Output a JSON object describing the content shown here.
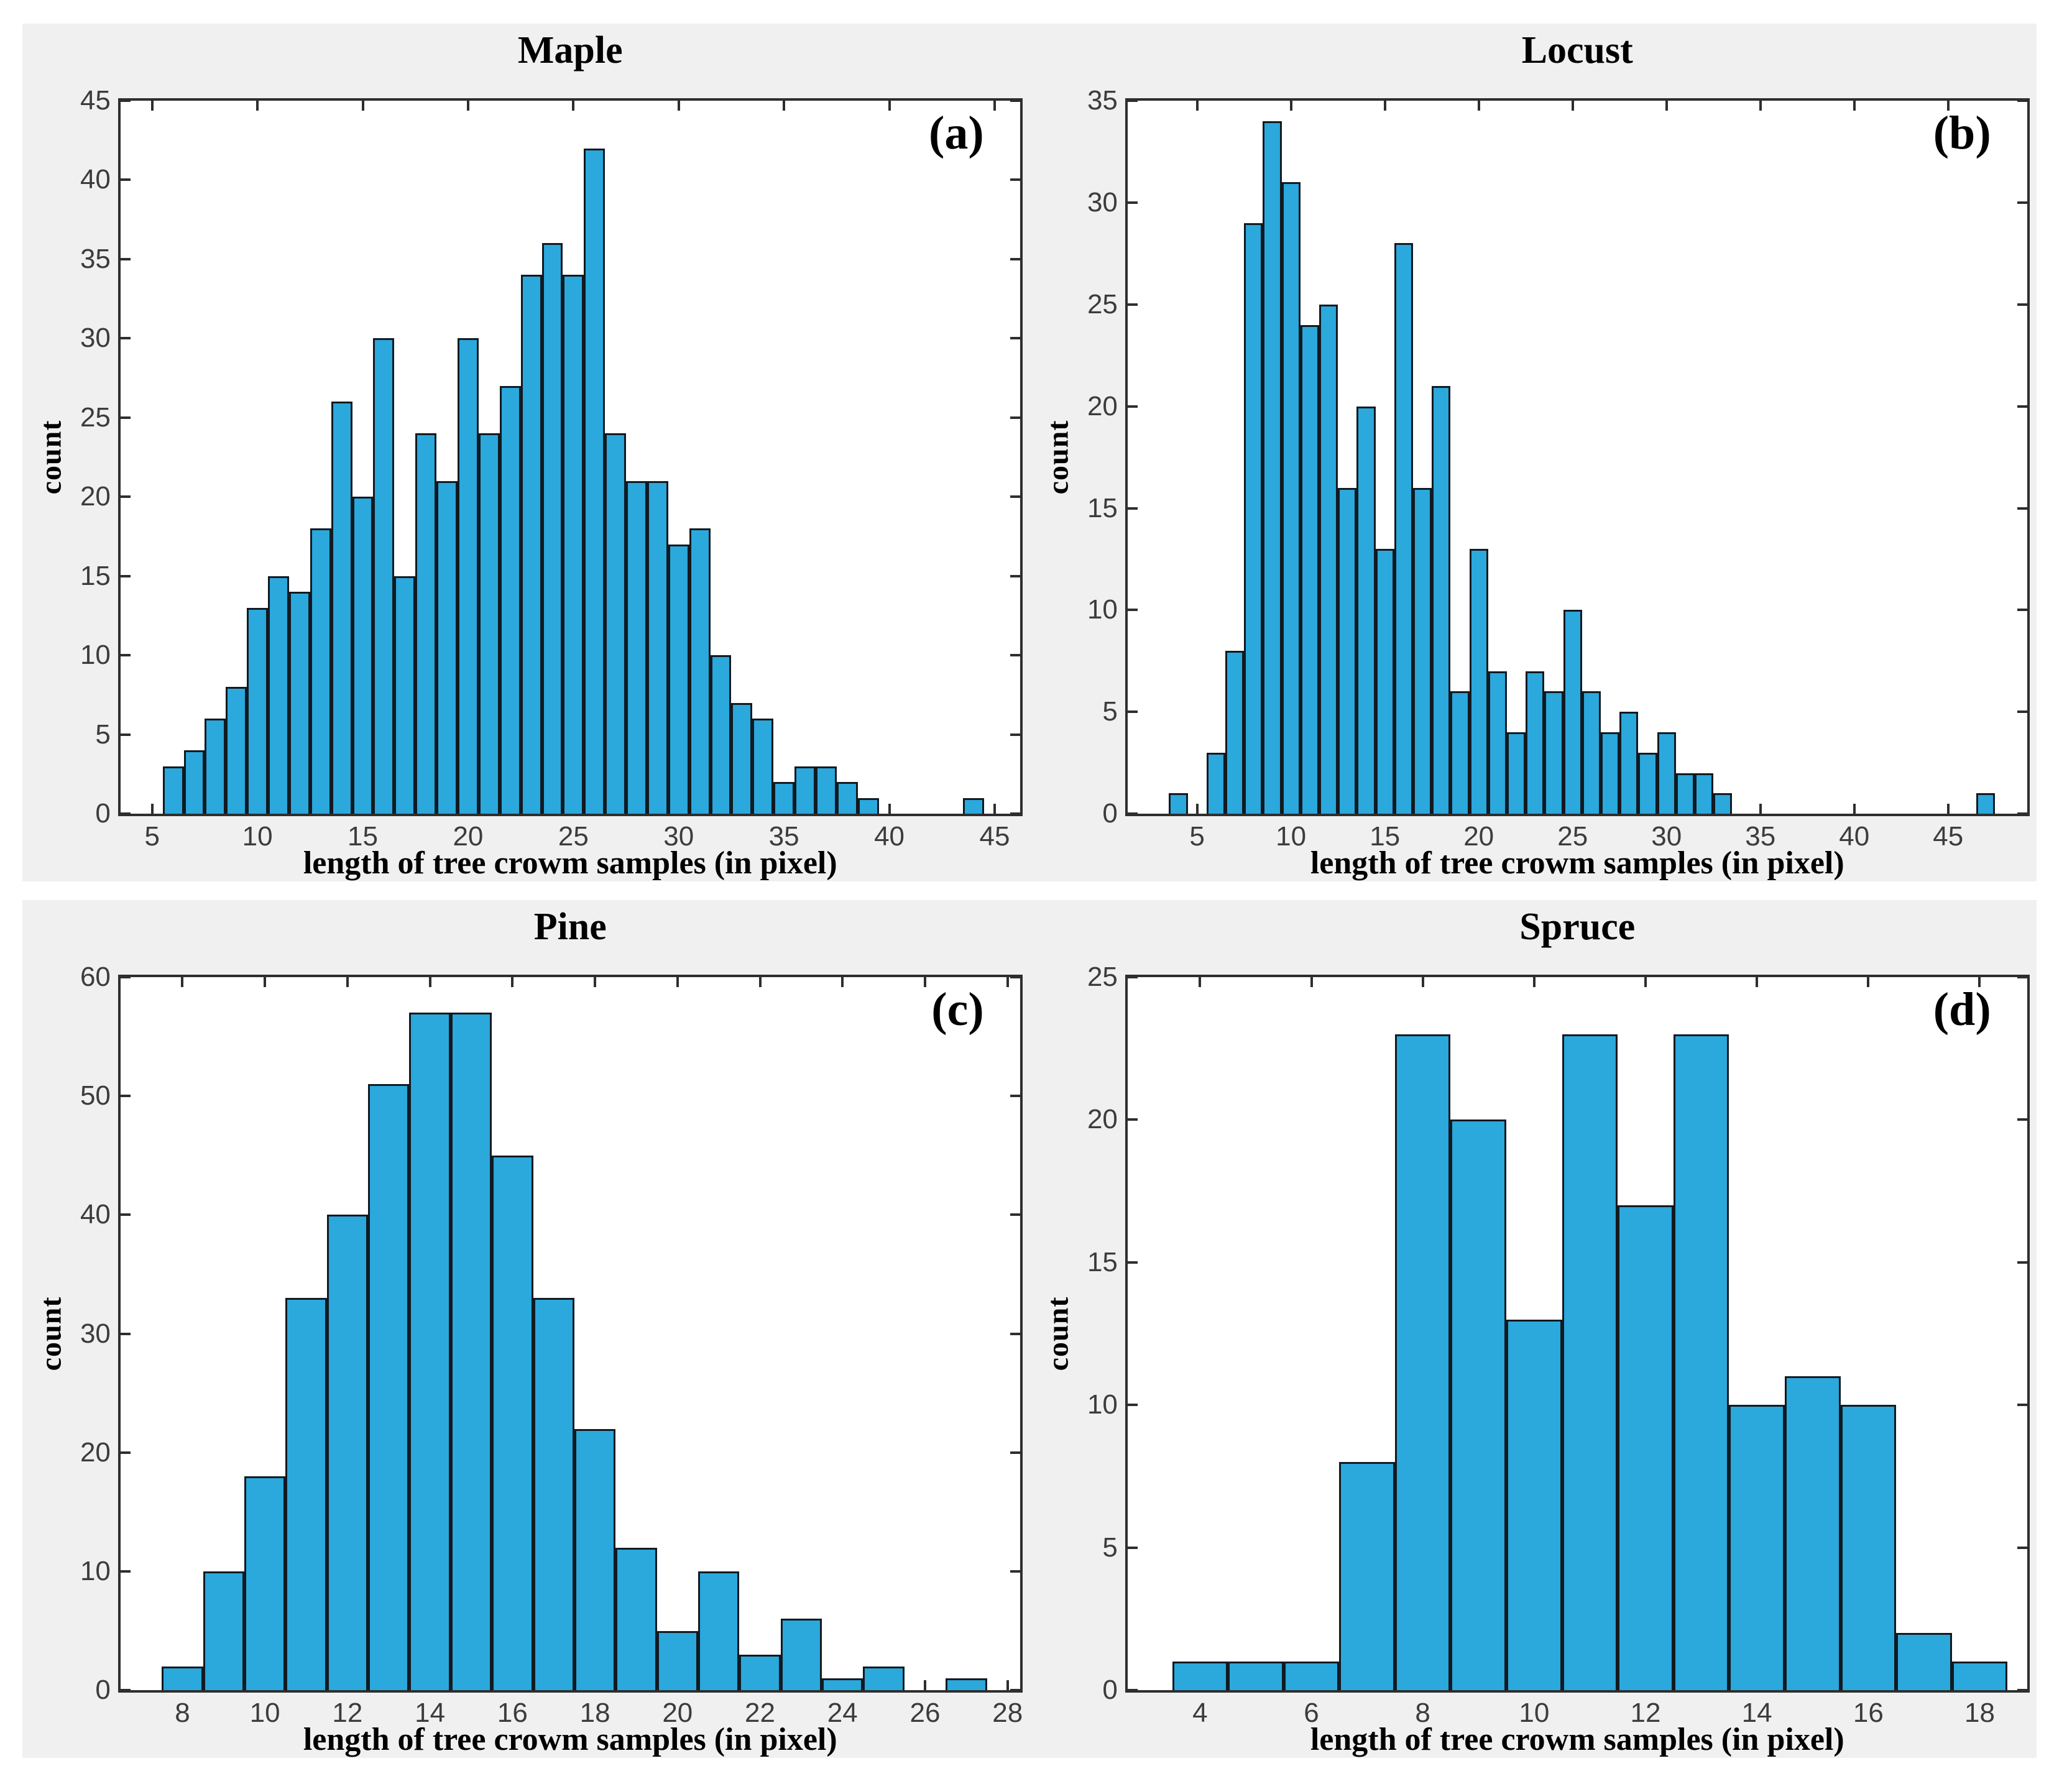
{
  "figure": {
    "colors": {
      "band_bg": "#F0F0F0",
      "plot_bg": "#FFFFFF",
      "bar_face": "#2BA8DC",
      "bar_edge": "#111A21",
      "axis": "#2E2E2E",
      "tick_label": "#3C3C3C",
      "text": "#000000"
    }
  },
  "chart_data": [
    {
      "type": "bar",
      "panel": "a",
      "title": "Maple",
      "corner_label": "(a)",
      "xlabel": "length of tree crowm samples (in pixel)",
      "ylabel": "count",
      "xlim": [
        3.5,
        46.2
      ],
      "ylim": [
        0,
        45
      ],
      "xticks": [
        5,
        10,
        15,
        20,
        25,
        30,
        35,
        40,
        45
      ],
      "yticks": [
        0,
        5,
        10,
        15,
        20,
        25,
        30,
        35,
        40,
        45
      ],
      "bin_width": 1,
      "legend": "none",
      "grid": false,
      "bars": [
        [
          5.5,
          3
        ],
        [
          6.5,
          4
        ],
        [
          7.5,
          6
        ],
        [
          8.5,
          8
        ],
        [
          9.5,
          13
        ],
        [
          10.5,
          15
        ],
        [
          11.5,
          14
        ],
        [
          12.5,
          18
        ],
        [
          13.5,
          26
        ],
        [
          14.5,
          20
        ],
        [
          15.5,
          30
        ],
        [
          16.5,
          15
        ],
        [
          17.5,
          24
        ],
        [
          18.5,
          21
        ],
        [
          19.5,
          30
        ],
        [
          20.5,
          24
        ],
        [
          21.5,
          27
        ],
        [
          22.5,
          34
        ],
        [
          23.5,
          36
        ],
        [
          24.5,
          34
        ],
        [
          25.5,
          42
        ],
        [
          26.5,
          24
        ],
        [
          27.5,
          21
        ],
        [
          28.5,
          21
        ],
        [
          29.5,
          17
        ],
        [
          30.5,
          18
        ],
        [
          31.5,
          10
        ],
        [
          32.5,
          7
        ],
        [
          33.5,
          6
        ],
        [
          34.5,
          2
        ],
        [
          35.5,
          3
        ],
        [
          36.5,
          3
        ],
        [
          37.5,
          2
        ],
        [
          38.5,
          1
        ],
        [
          43.5,
          1
        ]
      ]
    },
    {
      "type": "bar",
      "panel": "b",
      "title": "Locust",
      "corner_label": "(b)",
      "xlabel": "length of tree crowm samples (in pixel)",
      "ylabel": "count",
      "xlim": [
        1.3,
        49.2
      ],
      "ylim": [
        0,
        35
      ],
      "xticks": [
        5,
        10,
        15,
        20,
        25,
        30,
        35,
        40,
        45
      ],
      "yticks": [
        0,
        5,
        10,
        15,
        20,
        25,
        30,
        35
      ],
      "bin_width": 1,
      "legend": "none",
      "grid": false,
      "bars": [
        [
          3.5,
          1
        ],
        [
          5.5,
          3
        ],
        [
          6.5,
          8
        ],
        [
          7.5,
          29
        ],
        [
          8.5,
          34
        ],
        [
          9.5,
          31
        ],
        [
          10.5,
          24
        ],
        [
          11.5,
          25
        ],
        [
          12.5,
          16
        ],
        [
          13.5,
          20
        ],
        [
          14.5,
          13
        ],
        [
          15.5,
          28
        ],
        [
          16.5,
          16
        ],
        [
          17.5,
          21
        ],
        [
          18.5,
          6
        ],
        [
          19.5,
          13
        ],
        [
          20.5,
          7
        ],
        [
          21.5,
          4
        ],
        [
          22.5,
          7
        ],
        [
          23.5,
          6
        ],
        [
          24.5,
          10
        ],
        [
          25.5,
          6
        ],
        [
          26.5,
          4
        ],
        [
          27.5,
          5
        ],
        [
          28.5,
          3
        ],
        [
          29.5,
          4
        ],
        [
          30.5,
          2
        ],
        [
          31.5,
          2
        ],
        [
          32.5,
          1
        ],
        [
          46.5,
          1
        ]
      ]
    },
    {
      "type": "bar",
      "panel": "c",
      "title": "Pine",
      "corner_label": "(c)",
      "xlabel": "length of tree crowm samples (in pixel)",
      "ylabel": "count",
      "xlim": [
        6.5,
        28.3
      ],
      "ylim": [
        0,
        60
      ],
      "xticks": [
        8,
        10,
        12,
        14,
        16,
        18,
        20,
        22,
        24,
        26,
        28
      ],
      "yticks": [
        0,
        10,
        20,
        30,
        40,
        50,
        60
      ],
      "bin_width": 1,
      "legend": "none",
      "grid": false,
      "bars": [
        [
          7.5,
          2
        ],
        [
          8.5,
          10
        ],
        [
          9.5,
          18
        ],
        [
          10.5,
          33
        ],
        [
          11.5,
          40
        ],
        [
          12.5,
          51
        ],
        [
          13.5,
          57
        ],
        [
          14.5,
          57
        ],
        [
          15.5,
          45
        ],
        [
          16.5,
          33
        ],
        [
          17.5,
          22
        ],
        [
          18.5,
          12
        ],
        [
          19.5,
          5
        ],
        [
          20.5,
          10
        ],
        [
          21.5,
          3
        ],
        [
          22.5,
          6
        ],
        [
          23.5,
          1
        ],
        [
          24.5,
          2
        ],
        [
          26.5,
          1
        ]
      ]
    },
    {
      "type": "bar",
      "panel": "d",
      "title": "Spruce",
      "corner_label": "(d)",
      "xlabel": "length of tree crowm samples (in pixel)",
      "ylabel": "count",
      "xlim": [
        2.7,
        18.85
      ],
      "ylim": [
        0,
        25
      ],
      "xticks": [
        4,
        6,
        8,
        10,
        12,
        14,
        16,
        18
      ],
      "yticks": [
        0,
        5,
        10,
        15,
        20,
        25
      ],
      "bin_width": 1,
      "legend": "none",
      "grid": false,
      "bars": [
        [
          3.5,
          1
        ],
        [
          4.5,
          1
        ],
        [
          5.5,
          1
        ],
        [
          6.5,
          8
        ],
        [
          7.5,
          23
        ],
        [
          8.5,
          20
        ],
        [
          9.5,
          13
        ],
        [
          10.5,
          23
        ],
        [
          11.5,
          17
        ],
        [
          12.5,
          23
        ],
        [
          13.5,
          10
        ],
        [
          14.5,
          11
        ],
        [
          15.5,
          10
        ],
        [
          16.5,
          2
        ],
        [
          17.5,
          1
        ]
      ]
    }
  ]
}
